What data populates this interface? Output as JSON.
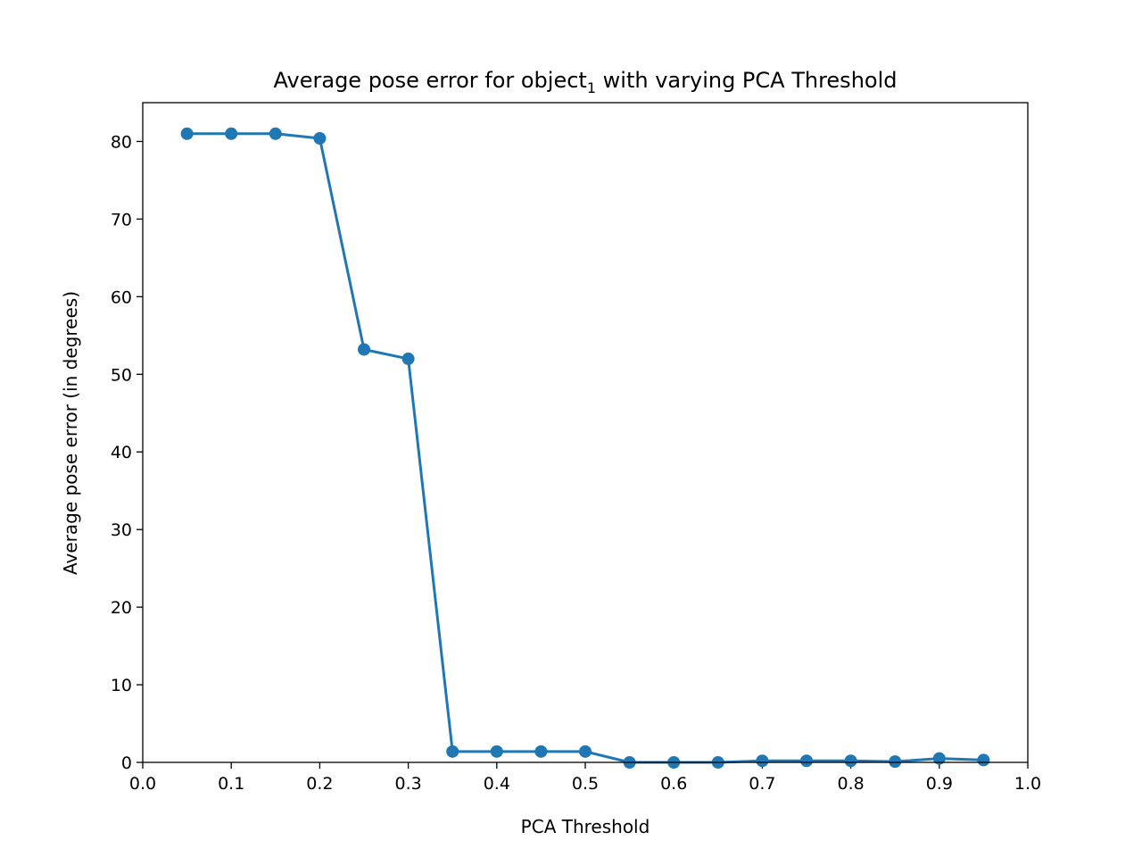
{
  "chart_data": {
    "type": "line",
    "title": {
      "prefix": "Average pose error for object",
      "subscript": "1",
      "suffix": " with varying PCA Threshold"
    },
    "xlabel": "PCA Threshold",
    "ylabel": "Average pose error (in degrees)",
    "xlim": [
      0.0,
      1.0
    ],
    "ylim": [
      0,
      85
    ],
    "xticks": [
      "0.0",
      "0.1",
      "0.2",
      "0.3",
      "0.4",
      "0.5",
      "0.6",
      "0.7",
      "0.8",
      "0.9",
      "1.0"
    ],
    "yticks": [
      "0",
      "10",
      "20",
      "30",
      "40",
      "50",
      "60",
      "70",
      "80"
    ],
    "grid": false,
    "series": [
      {
        "color": "#1f77b4",
        "marker": "circle",
        "points": [
          {
            "x": 0.05,
            "y": 81.0
          },
          {
            "x": 0.1,
            "y": 81.0
          },
          {
            "x": 0.15,
            "y": 81.0
          },
          {
            "x": 0.2,
            "y": 80.4
          },
          {
            "x": 0.25,
            "y": 53.2
          },
          {
            "x": 0.3,
            "y": 52.0
          },
          {
            "x": 0.35,
            "y": 1.4
          },
          {
            "x": 0.4,
            "y": 1.4
          },
          {
            "x": 0.45,
            "y": 1.4
          },
          {
            "x": 0.5,
            "y": 1.4
          },
          {
            "x": 0.55,
            "y": 0.0
          },
          {
            "x": 0.6,
            "y": 0.0
          },
          {
            "x": 0.65,
            "y": 0.0
          },
          {
            "x": 0.7,
            "y": 0.2
          },
          {
            "x": 0.75,
            "y": 0.2
          },
          {
            "x": 0.8,
            "y": 0.2
          },
          {
            "x": 0.85,
            "y": 0.1
          },
          {
            "x": 0.9,
            "y": 0.5
          },
          {
            "x": 0.95,
            "y": 0.3
          }
        ]
      }
    ]
  }
}
